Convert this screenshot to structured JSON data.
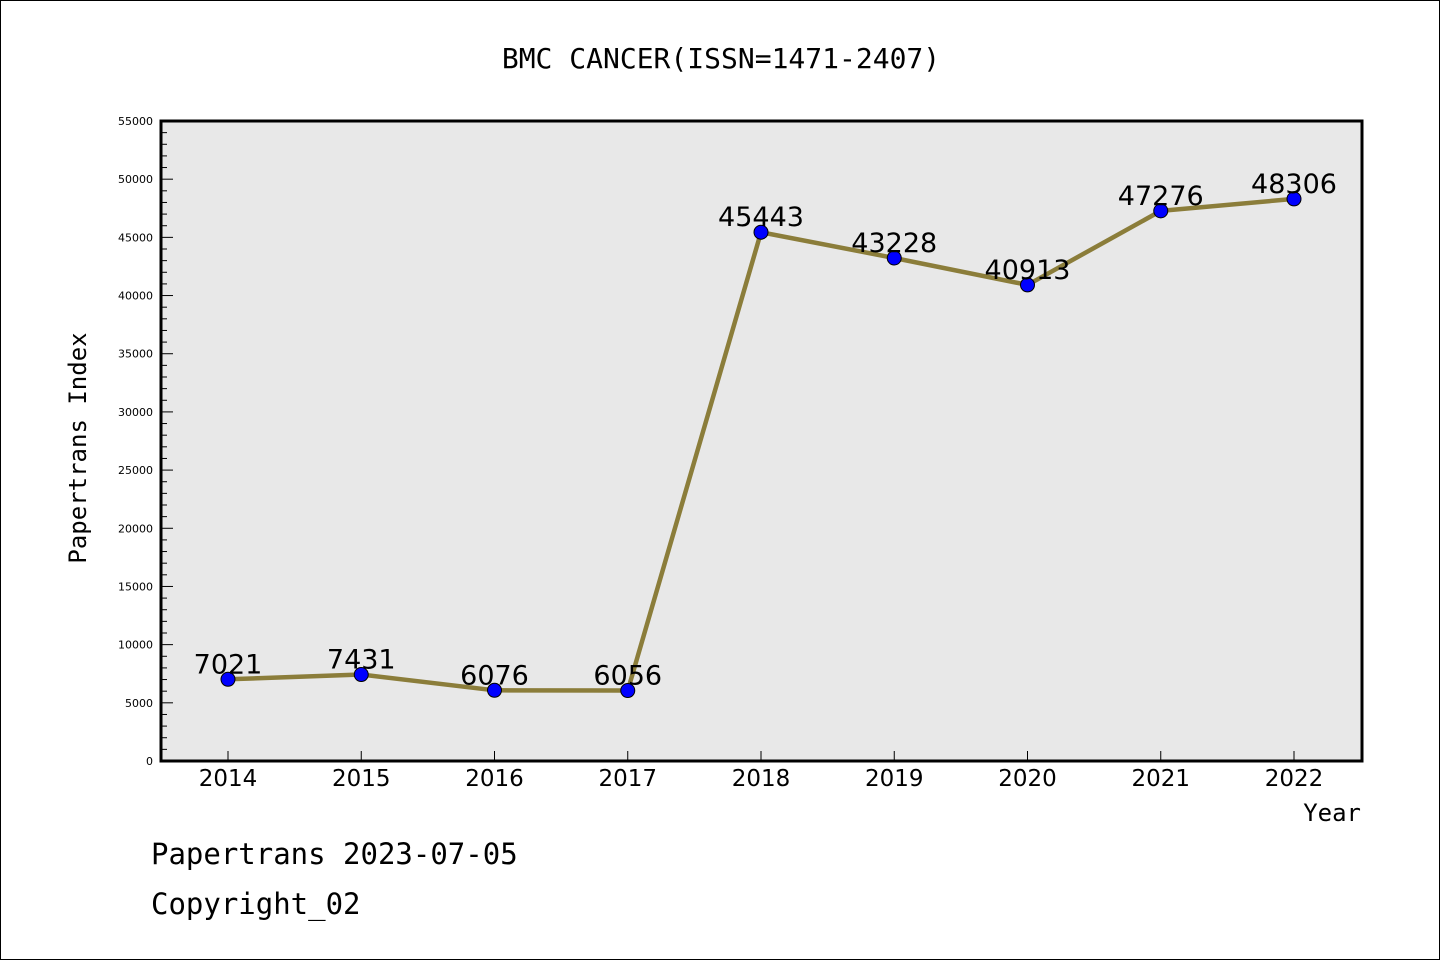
{
  "chart_data": {
    "type": "line",
    "title": "BMC CANCER(ISSN=1471-2407)",
    "xlabel": "Year",
    "ylabel": "Papertrans Index",
    "categories": [
      "2014",
      "2015",
      "2016",
      "2017",
      "2018",
      "2019",
      "2020",
      "2021",
      "2022"
    ],
    "series": [
      {
        "values": [
          7021,
          7431,
          6076,
          6056,
          45443,
          43228,
          40913,
          47276,
          48306
        ]
      }
    ],
    "data_labels": [
      "7021",
      "7431",
      "6076",
      "6056",
      "45443",
      "43228",
      "40913",
      "47276",
      "48306"
    ],
    "ylim": [
      0,
      55000
    ],
    "y_ticks": [
      "0",
      "5000",
      "10000",
      "15000",
      "20000",
      "25000",
      "30000",
      "35000",
      "40000",
      "45000",
      "50000",
      "55000"
    ],
    "y_tick_values": [
      0,
      5000,
      10000,
      15000,
      20000,
      25000,
      30000,
      35000,
      40000,
      45000,
      50000,
      55000
    ],
    "grid": false,
    "legend": "none",
    "colors": {
      "line": "#8b7d3a",
      "marker": "#0000ff",
      "plot_background": "#e8e8e8"
    }
  },
  "footer": {
    "date_line": "Papertrans 2023-07-05",
    "copyright_line": "Copyright_02"
  }
}
